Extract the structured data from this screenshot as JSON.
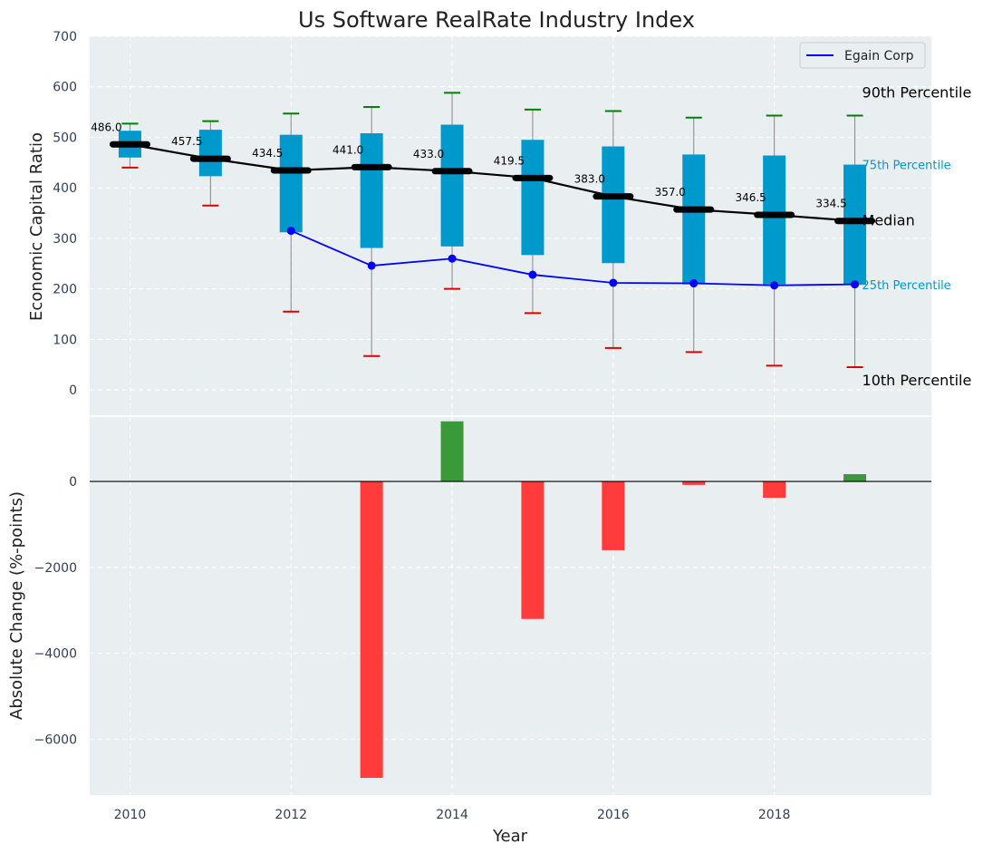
{
  "chart_data": [
    {
      "type": "box",
      "title": "Us Software RealRate Industry Index",
      "xlabel": "",
      "ylabel": "Economic Capital Ratio",
      "ylim": [
        -50,
        700
      ],
      "yticks": [
        0,
        100,
        200,
        300,
        400,
        500,
        600,
        700
      ],
      "years": [
        2010,
        2011,
        2012,
        2013,
        2014,
        2015,
        2016,
        2017,
        2018,
        2019
      ],
      "p10": [
        440,
        365,
        155,
        67,
        200,
        152,
        83,
        75,
        48,
        45
      ],
      "p25": [
        460,
        423,
        312,
        281,
        284,
        267,
        251,
        209,
        209,
        208
      ],
      "median": [
        486.0,
        457.5,
        434.5,
        441.0,
        433.0,
        419.5,
        383.0,
        357.0,
        346.5,
        334.5
      ],
      "median_labels": [
        "486.0",
        "457.5",
        "434.5",
        "441.0",
        "433.0",
        "419.5",
        "383.0",
        "357.0",
        "346.5",
        "334.5"
      ],
      "p75": [
        513,
        515,
        505,
        508,
        525,
        495,
        482,
        466,
        464,
        446
      ],
      "p90": [
        527,
        532,
        547,
        560,
        588,
        555,
        552,
        539,
        543,
        543
      ],
      "company_name": "Egain Corp",
      "company_years": [
        2012,
        2013,
        2014,
        2015,
        2016,
        2017,
        2018,
        2019
      ],
      "company_values": [
        315,
        246,
        260,
        228,
        212,
        211,
        207,
        209
      ],
      "annotations": {
        "p90": "90th Percentile",
        "p75": "75th Percentile",
        "median": "Median",
        "p25": "25th Percentile",
        "p10": "10th Percentile"
      },
      "legend": [
        "Egain Corp"
      ],
      "legend_position": "top-right"
    },
    {
      "type": "bar",
      "xlabel": "Year",
      "ylabel": "Absolute Change (%-points)",
      "ylim": [
        -7300,
        1500
      ],
      "yticks": [
        -6000,
        -4000,
        -2000,
        0
      ],
      "ytick_labels": [
        "−6000",
        "−4000",
        "−2000",
        "0"
      ],
      "categories": [
        2013,
        2014,
        2015,
        2016,
        2017,
        2018,
        2019
      ],
      "values": [
        -6900,
        1400,
        -3200,
        -1600,
        -80,
        -380,
        170
      ],
      "xticks": [
        2010,
        2012,
        2014,
        2016,
        2018
      ],
      "xlim": [
        2009.5,
        2019.95
      ]
    }
  ],
  "colors": {
    "panel_bg": "#e9eef0",
    "box": "#0099cc",
    "median": "#000000",
    "p90_cap": "#008000",
    "p10_cap": "#dd0000",
    "whisker": "#888888",
    "company": "#0000ff",
    "pos_bar": "#3a9a3a",
    "neg_bar": "#ff3b3b"
  }
}
